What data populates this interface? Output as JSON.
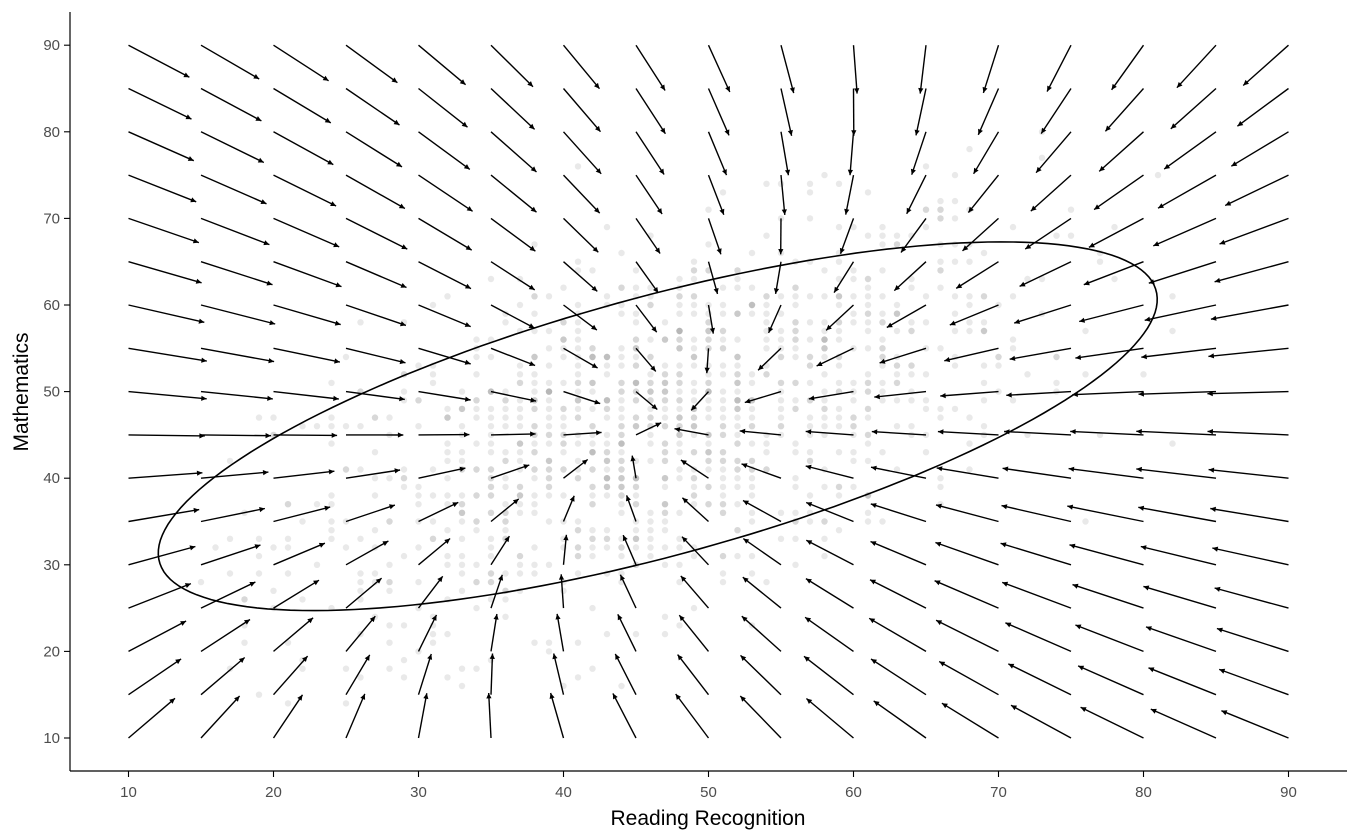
{
  "chart_data": {
    "type": "scatter",
    "title": "",
    "xlabel": "Reading Recognition",
    "ylabel": "Mathematics",
    "xlim": [
      6,
      94
    ],
    "ylim": [
      6,
      92
    ],
    "x_ticks": [
      10,
      20,
      30,
      40,
      50,
      60,
      70,
      80,
      90
    ],
    "y_ticks": [
      10,
      20,
      30,
      40,
      50,
      60,
      70,
      80,
      90
    ],
    "grid": false,
    "legend": "none",
    "colors": {
      "points": "#9a9a9a",
      "arrows": "#000000",
      "ellipse": "#000000",
      "axis": "#000000",
      "tick_labels": "#4d4d4d"
    },
    "vector_field": {
      "description": "direction arrows evaluated on a regular grid",
      "x_start": 10,
      "x_end": 90,
      "x_step": 5,
      "y_start": 10,
      "y_end": 90,
      "y_step": 5,
      "equilibrium": [
        46.5,
        46
      ],
      "rotation": 0.06,
      "drift": [
        0.3,
        0.4
      ],
      "arrow_length": 3.5
    },
    "confidence_ellipse": {
      "center": [
        46.5,
        46
      ],
      "semi_major": 38,
      "semi_minor": 14,
      "angle_deg": 27
    },
    "scatter_cloud": {
      "center": [
        46.5,
        46
      ],
      "sd_x": 13,
      "sd_y": 12,
      "correlation": 0.55,
      "n": 1200,
      "x_range": [
        15,
        82
      ],
      "y_range": [
        12,
        82
      ]
    }
  }
}
